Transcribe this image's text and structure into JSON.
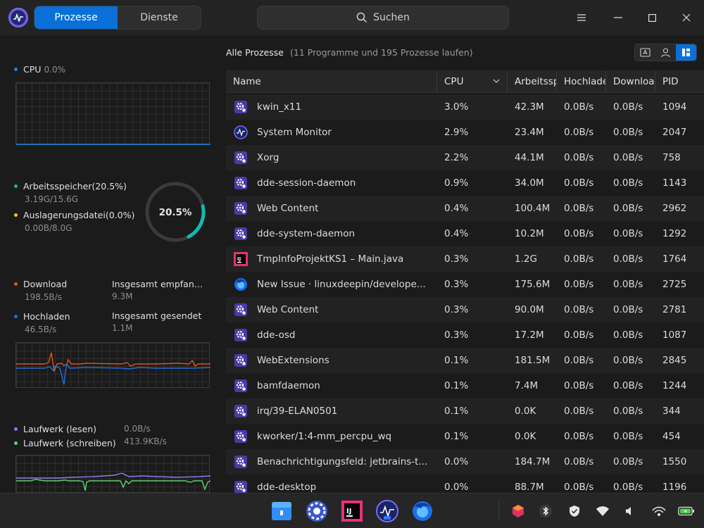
{
  "titlebar": {
    "tabs": [
      "Prozesse",
      "Dienste"
    ],
    "active_tab": 0,
    "search_placeholder": "Suchen"
  },
  "left": {
    "cpu": {
      "label": "CPU",
      "value": "0.0%"
    },
    "memory": {
      "label": "Arbeitsspeicher(20.5%)",
      "value": "3.19G/15.6G",
      "swap_label": "Auslagerungsdatei(0.0%)",
      "swap_value": "0.00B/8.0G",
      "ring_text": "20.5%",
      "ring_fraction": 0.205
    },
    "network": {
      "download_label": "Download",
      "download_value": "198.5B/s",
      "total_recv_label": "Insgesamt empfan…",
      "total_recv_value": "9.3M",
      "upload_label": "Hochladen",
      "upload_value": "46.5B/s",
      "total_sent_label": "Insgesamt gesendet",
      "total_sent_value": "1.1M"
    },
    "disk": {
      "read_label": "Laufwerk (lesen)",
      "read_value": "0.0B/s",
      "write_label": "Laufwerk (schreiben)",
      "write_value": "413.9KB/s"
    },
    "colors": {
      "cpu": "#1a84e8",
      "memory": "#13b8b0",
      "swap": "#f0c419",
      "download": "#e2521e",
      "upload": "#1f6fe0",
      "disk_read": "#8e7bf2",
      "disk_write": "#5fd16f"
    }
  },
  "right": {
    "title": "Alle Prozesse",
    "count": "(11 Programme und 195 Prozesse laufen)",
    "columns": [
      "Name",
      "CPU",
      "Arbeitssp",
      "Hochlade",
      "Download",
      "PID"
    ],
    "processes": [
      {
        "icon": "gear-icon",
        "name": "kwin_x11",
        "cpu": "3.0%",
        "mem": "42.3M",
        "up": "0.0B/s",
        "down": "0.0B/s",
        "pid": "1094"
      },
      {
        "icon": "system-monitor-icon",
        "name": "System Monitor",
        "cpu": "2.9%",
        "mem": "23.4M",
        "up": "0.0B/s",
        "down": "0.0B/s",
        "pid": "2047"
      },
      {
        "icon": "gear-icon",
        "name": "Xorg",
        "cpu": "2.2%",
        "mem": "44.1M",
        "up": "0.0B/s",
        "down": "0.0B/s",
        "pid": "758"
      },
      {
        "icon": "gear-icon",
        "name": "dde-session-daemon",
        "cpu": "0.9%",
        "mem": "34.0M",
        "up": "0.0B/s",
        "down": "0.0B/s",
        "pid": "1143"
      },
      {
        "icon": "gear-icon",
        "name": "Web Content",
        "cpu": "0.4%",
        "mem": "100.4M",
        "up": "0.0B/s",
        "down": "0.0B/s",
        "pid": "2962"
      },
      {
        "icon": "gear-icon",
        "name": "dde-system-daemon",
        "cpu": "0.4%",
        "mem": "10.2M",
        "up": "0.0B/s",
        "down": "0.0B/s",
        "pid": "1292"
      },
      {
        "icon": "intellij-icon",
        "name": "TmpInfoProjektKS1 – Main.java",
        "cpu": "0.3%",
        "mem": "1.2G",
        "up": "0.0B/s",
        "down": "0.0B/s",
        "pid": "1764"
      },
      {
        "icon": "firefox-icon",
        "name": "New Issue · linuxdeepin/develope...",
        "cpu": "0.3%",
        "mem": "175.6M",
        "up": "0.0B/s",
        "down": "0.0B/s",
        "pid": "2725"
      },
      {
        "icon": "gear-icon",
        "name": "Web Content",
        "cpu": "0.3%",
        "mem": "90.0M",
        "up": "0.0B/s",
        "down": "0.0B/s",
        "pid": "2781"
      },
      {
        "icon": "gear-icon",
        "name": "dde-osd",
        "cpu": "0.3%",
        "mem": "17.2M",
        "up": "0.0B/s",
        "down": "0.0B/s",
        "pid": "1087"
      },
      {
        "icon": "gear-icon",
        "name": "WebExtensions",
        "cpu": "0.1%",
        "mem": "181.5M",
        "up": "0.0B/s",
        "down": "0.0B/s",
        "pid": "2845"
      },
      {
        "icon": "gear-icon",
        "name": "bamfdaemon",
        "cpu": "0.1%",
        "mem": "7.4M",
        "up": "0.0B/s",
        "down": "0.0B/s",
        "pid": "1244"
      },
      {
        "icon": "gear-icon",
        "name": "irq/39-ELAN0501",
        "cpu": "0.1%",
        "mem": "0.0K",
        "up": "0.0B/s",
        "down": "0.0B/s",
        "pid": "344"
      },
      {
        "icon": "gear-icon",
        "name": "kworker/1:4-mm_percpu_wq",
        "cpu": "0.1%",
        "mem": "0.0K",
        "up": "0.0B/s",
        "down": "0.0B/s",
        "pid": "454"
      },
      {
        "icon": "gear-icon",
        "name": "Benachrichtigungsfeld: jetbrains-t...",
        "cpu": "0.0%",
        "mem": "184.7M",
        "up": "0.0B/s",
        "down": "0.0B/s",
        "pid": "1550"
      },
      {
        "icon": "gear-icon",
        "name": "dde-desktop",
        "cpu": "0.0%",
        "mem": "88.7M",
        "up": "0.0B/s",
        "down": "0.0B/s",
        "pid": "1196"
      }
    ]
  },
  "dock": {
    "apps": [
      "file-manager-icon",
      "settings-icon",
      "intellij-icon",
      "system-monitor-icon",
      "firefox-icon"
    ],
    "tray": [
      "app-store-icon",
      "bluetooth-icon",
      "shield-icon",
      "wifi-icon",
      "volume-icon",
      "hotspot-icon",
      "battery-icon"
    ]
  }
}
